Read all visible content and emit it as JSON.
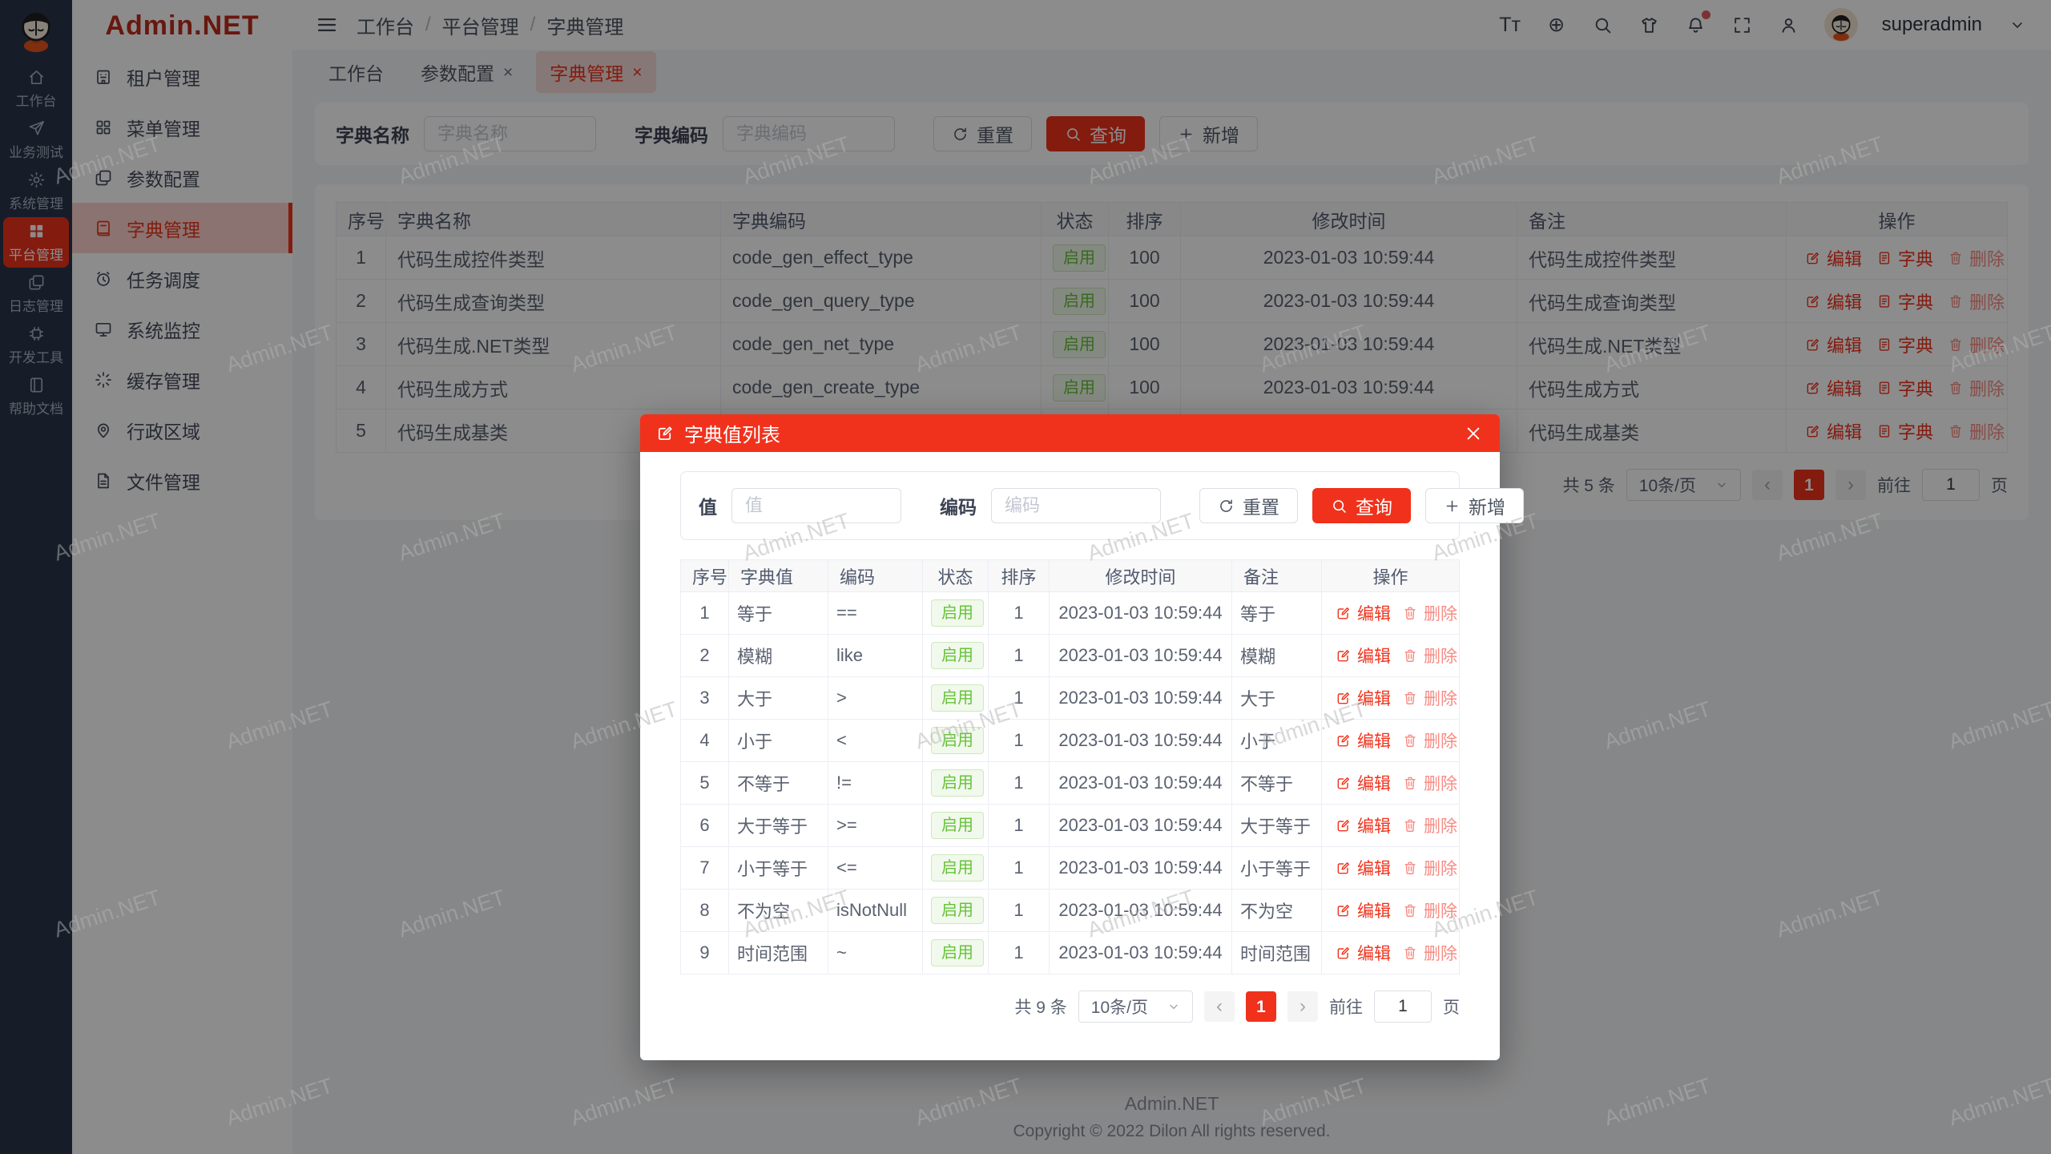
{
  "watermark": "Admin.NET",
  "colors": {
    "primary": "#f0321c",
    "success": "#67c23a"
  },
  "rail": {
    "items": [
      {
        "icon": "home",
        "label": "工作台",
        "active": false
      },
      {
        "icon": "send",
        "label": "业务测试",
        "active": false
      },
      {
        "icon": "gear",
        "label": "系统管理",
        "active": false
      },
      {
        "icon": "grid",
        "label": "平台管理",
        "active": true
      },
      {
        "icon": "copy",
        "label": "日志管理",
        "active": false
      },
      {
        "icon": "chip",
        "label": "开发工具",
        "active": false
      },
      {
        "icon": "book",
        "label": "帮助文档",
        "active": false
      }
    ]
  },
  "sidebar": {
    "brand": "Admin.NET",
    "items": [
      {
        "icon": "building",
        "label": "租户管理",
        "active": false
      },
      {
        "icon": "menu-grid",
        "label": "菜单管理",
        "active": false
      },
      {
        "icon": "docs",
        "label": "参数配置",
        "active": false
      },
      {
        "icon": "dict-book",
        "label": "字典管理",
        "active": true
      },
      {
        "icon": "alarm",
        "label": "任务调度",
        "active": false
      },
      {
        "icon": "monitor",
        "label": "系统监控",
        "active": false
      },
      {
        "icon": "spinner",
        "label": "缓存管理",
        "active": false
      },
      {
        "icon": "pin",
        "label": "行政区域",
        "active": false
      },
      {
        "icon": "file",
        "label": "文件管理",
        "active": false
      }
    ]
  },
  "topbar": {
    "breadcrumb": [
      "工作台",
      "平台管理",
      "字典管理"
    ],
    "font_icon": "Tт",
    "lang_icon": "⊕",
    "user": "superadmin"
  },
  "tabs": [
    {
      "label": "工作台",
      "closable": false,
      "active": false
    },
    {
      "label": "参数配置",
      "closable": true,
      "active": false
    },
    {
      "label": "字典管理",
      "closable": true,
      "active": true
    }
  ],
  "filter": {
    "name_label": "字典名称",
    "name_placeholder": "字典名称",
    "code_label": "字典编码",
    "code_placeholder": "字典编码",
    "reset": "重置",
    "search": "查询",
    "add": "新增"
  },
  "table": {
    "headers": [
      "序号",
      "字典名称",
      "字典编码",
      "状态",
      "排序",
      "修改时间",
      "备注",
      "操作"
    ],
    "ops": {
      "edit": "编辑",
      "dict": "字典",
      "del": "删除"
    },
    "rows": [
      {
        "index": "1",
        "name": "代码生成控件类型",
        "code": "code_gen_effect_type",
        "status": "启用",
        "sort": "100",
        "time": "2023-01-03 10:59:44",
        "remark": "代码生成控件类型"
      },
      {
        "index": "2",
        "name": "代码生成查询类型",
        "code": "code_gen_query_type",
        "status": "启用",
        "sort": "100",
        "time": "2023-01-03 10:59:44",
        "remark": "代码生成查询类型"
      },
      {
        "index": "3",
        "name": "代码生成.NET类型",
        "code": "code_gen_net_type",
        "status": "启用",
        "sort": "100",
        "time": "2023-01-03 10:59:44",
        "remark": "代码生成.NET类型"
      },
      {
        "index": "4",
        "name": "代码生成方式",
        "code": "code_gen_create_type",
        "status": "启用",
        "sort": "100",
        "time": "2023-01-03 10:59:44",
        "remark": "代码生成方式"
      },
      {
        "index": "5",
        "name": "代码生成基类",
        "code": "",
        "status": "",
        "sort": "",
        "time": "",
        "remark": "代码生成基类"
      }
    ]
  },
  "pagination": {
    "total": "共 5 条",
    "size": "10条/页",
    "page": "1",
    "goto_label": "前往",
    "goto_value": "1",
    "page_suffix": "页"
  },
  "modal": {
    "title": "字典值列表",
    "filter": {
      "value_label": "值",
      "value_placeholder": "值",
      "code_label": "编码",
      "code_placeholder": "编码",
      "reset": "重置",
      "search": "查询",
      "add": "新增"
    },
    "table": {
      "headers": [
        "序号",
        "字典值",
        "编码",
        "状态",
        "排序",
        "修改时间",
        "备注",
        "操作"
      ],
      "ops": {
        "edit": "编辑",
        "del": "删除"
      },
      "rows": [
        {
          "index": "1",
          "value": "等于",
          "code": "==",
          "status": "启用",
          "sort": "1",
          "time": "2023-01-03 10:59:44",
          "remark": "等于"
        },
        {
          "index": "2",
          "value": "模糊",
          "code": "like",
          "status": "启用",
          "sort": "1",
          "time": "2023-01-03 10:59:44",
          "remark": "模糊"
        },
        {
          "index": "3",
          "value": "大于",
          "code": ">",
          "status": "启用",
          "sort": "1",
          "time": "2023-01-03 10:59:44",
          "remark": "大于"
        },
        {
          "index": "4",
          "value": "小于",
          "code": "<",
          "status": "启用",
          "sort": "1",
          "time": "2023-01-03 10:59:44",
          "remark": "小于"
        },
        {
          "index": "5",
          "value": "不等于",
          "code": "!=",
          "status": "启用",
          "sort": "1",
          "time": "2023-01-03 10:59:44",
          "remark": "不等于"
        },
        {
          "index": "6",
          "value": "大于等于",
          "code": ">=",
          "status": "启用",
          "sort": "1",
          "time": "2023-01-03 10:59:44",
          "remark": "大于等于"
        },
        {
          "index": "7",
          "value": "小于等于",
          "code": "<=",
          "status": "启用",
          "sort": "1",
          "time": "2023-01-03 10:59:44",
          "remark": "小于等于"
        },
        {
          "index": "8",
          "value": "不为空",
          "code": "isNotNull",
          "status": "启用",
          "sort": "1",
          "time": "2023-01-03 10:59:44",
          "remark": "不为空"
        },
        {
          "index": "9",
          "value": "时间范围",
          "code": "~",
          "status": "启用",
          "sort": "1",
          "time": "2023-01-03 10:59:44",
          "remark": "时间范围"
        }
      ]
    },
    "pagination": {
      "total": "共 9 条",
      "size": "10条/页",
      "page": "1",
      "goto_label": "前往",
      "goto_value": "1",
      "page_suffix": "页"
    }
  },
  "footer": {
    "line1": "Admin.NET",
    "line2": "Copyright © 2022 Dilon All rights reserved."
  }
}
